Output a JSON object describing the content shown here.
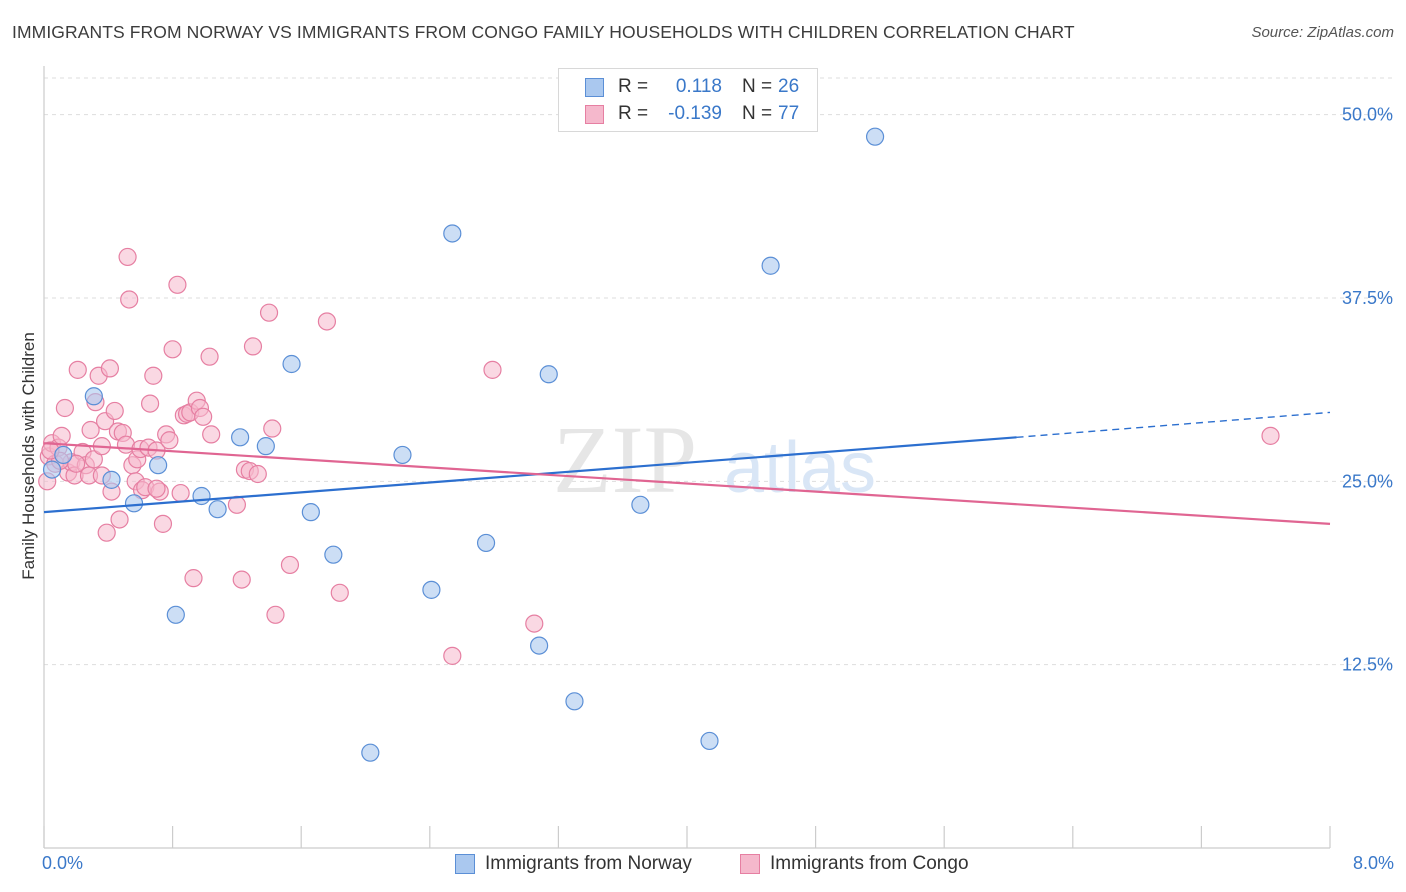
{
  "header": {
    "title": "IMMIGRANTS FROM NORWAY VS IMMIGRANTS FROM CONGO FAMILY HOUSEHOLDS WITH CHILDREN CORRELATION CHART",
    "source": "Source: ZipAtlas.com"
  },
  "legend": {
    "norway": {
      "r_label": "R =",
      "r_value": "0.118",
      "n_label": "N =",
      "n_value": "26"
    },
    "congo": {
      "r_label": "R =",
      "r_value": "-0.139",
      "n_label": "N =",
      "n_value": "77"
    }
  },
  "watermark": {
    "zip": "ZIP",
    "atlas": "atlas"
  },
  "colors": {
    "norway_fill": "#aac8ef",
    "norway_stroke": "#5b8fd6",
    "norway_line": "#2c6fcf",
    "congo_fill": "#f5b8cc",
    "congo_stroke": "#e67fa2",
    "congo_line": "#e06592",
    "axis_label": "#3a78c9",
    "grid": "#dddddd"
  },
  "chart_data": {
    "type": "scatter",
    "title": "IMMIGRANTS FROM NORWAY VS IMMIGRANTS FROM CONGO FAMILY HOUSEHOLDS WITH CHILDREN CORRELATION CHART",
    "xlabel": "",
    "ylabel": "Family Households with Children",
    "xlim": [
      0,
      8
    ],
    "ylim": [
      0,
      52.5
    ],
    "x_tick_labels": [
      "0.0%",
      "8.0%"
    ],
    "y_ticks": [
      12.5,
      25.0,
      37.5,
      50.0
    ],
    "y_tick_labels": [
      "12.5%",
      "25.0%",
      "37.5%",
      "50.0%"
    ],
    "grid": "horizontal dashed",
    "legend_position": "top-center",
    "series": [
      {
        "name": "Immigrants from Norway",
        "r": 0.118,
        "n": 26,
        "trend": {
          "x": [
            0,
            6.05
          ],
          "y": [
            22.9,
            28.0
          ],
          "dashed_to": [
            8.0,
            29.7
          ]
        },
        "points": [
          [
            0.05,
            25.8
          ],
          [
            0.12,
            26.8
          ],
          [
            0.31,
            30.8
          ],
          [
            0.42,
            25.1
          ],
          [
            0.56,
            23.5
          ],
          [
            0.71,
            26.1
          ],
          [
            0.82,
            15.9
          ],
          [
            0.98,
            24.0
          ],
          [
            1.08,
            23.1
          ],
          [
            1.22,
            28.0
          ],
          [
            1.38,
            27.4
          ],
          [
            1.54,
            33.0
          ],
          [
            1.66,
            22.9
          ],
          [
            1.8,
            20.0
          ],
          [
            2.03,
            6.5
          ],
          [
            2.23,
            26.8
          ],
          [
            2.41,
            17.6
          ],
          [
            2.54,
            41.9
          ],
          [
            2.75,
            20.8
          ],
          [
            3.08,
            13.8
          ],
          [
            3.14,
            32.3
          ],
          [
            3.3,
            10.0
          ],
          [
            3.71,
            23.4
          ],
          [
            4.14,
            7.3
          ],
          [
            4.52,
            39.7
          ],
          [
            5.17,
            48.5
          ]
        ]
      },
      {
        "name": "Immigrants from Congo",
        "r": -0.139,
        "n": 77,
        "trend": {
          "x": [
            0,
            8.0
          ],
          "y": [
            27.6,
            22.1
          ]
        },
        "points": [
          [
            0.02,
            25.0
          ],
          [
            0.03,
            26.7
          ],
          [
            0.05,
            27.6
          ],
          [
            0.07,
            26.2
          ],
          [
            0.09,
            27.3
          ],
          [
            0.11,
            28.1
          ],
          [
            0.13,
            30.0
          ],
          [
            0.15,
            25.6
          ],
          [
            0.17,
            26.3
          ],
          [
            0.19,
            25.4
          ],
          [
            0.21,
            32.6
          ],
          [
            0.24,
            27.0
          ],
          [
            0.26,
            26.1
          ],
          [
            0.28,
            25.4
          ],
          [
            0.29,
            28.5
          ],
          [
            0.31,
            26.5
          ],
          [
            0.32,
            30.4
          ],
          [
            0.34,
            32.2
          ],
          [
            0.36,
            27.4
          ],
          [
            0.38,
            29.1
          ],
          [
            0.39,
            21.5
          ],
          [
            0.41,
            32.7
          ],
          [
            0.42,
            24.3
          ],
          [
            0.44,
            29.8
          ],
          [
            0.46,
            28.4
          ],
          [
            0.47,
            22.4
          ],
          [
            0.49,
            28.3
          ],
          [
            0.51,
            27.5
          ],
          [
            0.52,
            40.3
          ],
          [
            0.53,
            37.4
          ],
          [
            0.55,
            26.1
          ],
          [
            0.57,
            25.0
          ],
          [
            0.58,
            26.5
          ],
          [
            0.6,
            27.2
          ],
          [
            0.61,
            24.4
          ],
          [
            0.63,
            24.6
          ],
          [
            0.65,
            27.3
          ],
          [
            0.66,
            30.3
          ],
          [
            0.68,
            32.2
          ],
          [
            0.7,
            27.1
          ],
          [
            0.72,
            24.3
          ],
          [
            0.74,
            22.1
          ],
          [
            0.76,
            28.2
          ],
          [
            0.78,
            27.8
          ],
          [
            0.8,
            34.0
          ],
          [
            0.83,
            38.4
          ],
          [
            0.85,
            24.2
          ],
          [
            0.87,
            29.5
          ],
          [
            0.89,
            29.6
          ],
          [
            0.91,
            29.7
          ],
          [
            0.93,
            18.4
          ],
          [
            0.95,
            30.5
          ],
          [
            0.97,
            30.0
          ],
          [
            0.99,
            29.4
          ],
          [
            1.03,
            33.5
          ],
          [
            1.04,
            28.2
          ],
          [
            1.23,
            18.3
          ],
          [
            1.25,
            25.8
          ],
          [
            1.28,
            25.7
          ],
          [
            1.3,
            34.2
          ],
          [
            1.33,
            25.5
          ],
          [
            1.2,
            23.4
          ],
          [
            1.4,
            36.5
          ],
          [
            1.42,
            28.6
          ],
          [
            1.44,
            15.9
          ],
          [
            1.53,
            19.3
          ],
          [
            1.76,
            35.9
          ],
          [
            1.84,
            17.4
          ],
          [
            2.54,
            13.1
          ],
          [
            2.79,
            32.6
          ],
          [
            3.05,
            15.3
          ],
          [
            7.63,
            28.1
          ],
          [
            0.7,
            24.5
          ],
          [
            0.36,
            25.4
          ],
          [
            0.1,
            26.4
          ],
          [
            0.04,
            27.1
          ],
          [
            0.2,
            26.2
          ]
        ]
      }
    ]
  },
  "bottom_legend": {
    "norway_label": "Immigrants from Norway",
    "congo_label": "Immigrants from Congo"
  }
}
